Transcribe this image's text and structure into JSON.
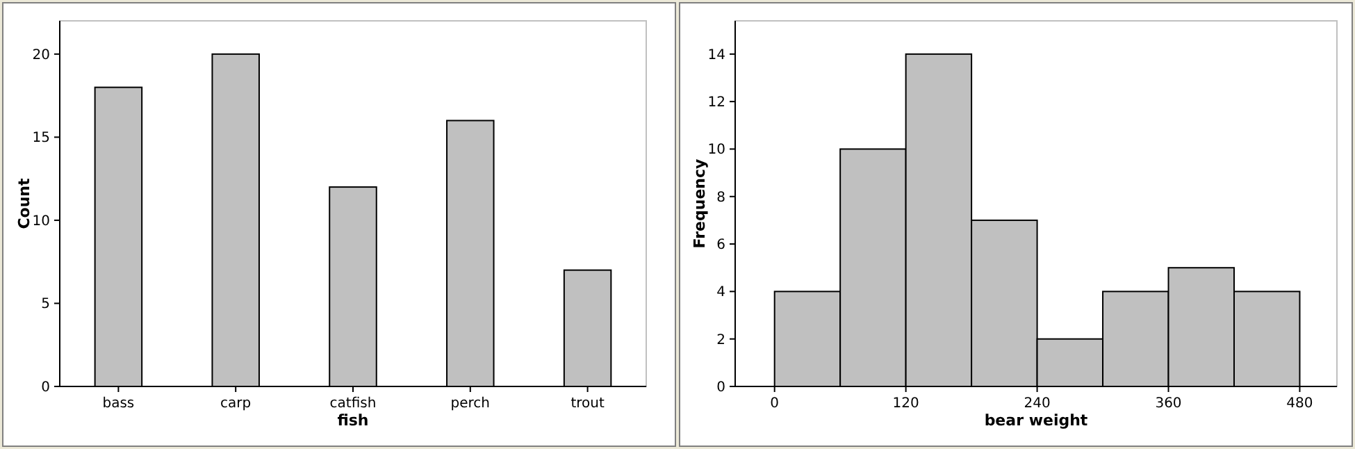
{
  "chart_data": [
    {
      "type": "bar",
      "xlabel": "fish",
      "ylabel": "Count",
      "categories": [
        "bass",
        "carp",
        "catfish",
        "perch",
        "trout"
      ],
      "values": [
        18,
        20,
        12,
        16,
        7
      ],
      "color": "#c0c0c0",
      "ylim": [
        0,
        22
      ],
      "yticks": [
        0,
        5,
        10,
        15,
        20
      ],
      "grid": false
    },
    {
      "type": "histogram",
      "xlabel": "bear weight",
      "ylabel": "Frequency",
      "bins": [
        0,
        60,
        120,
        180,
        240,
        300,
        360,
        420,
        480
      ],
      "values": [
        4,
        10,
        14,
        7,
        2,
        4,
        5,
        4
      ],
      "color": "#c0c0c0",
      "xlim": [
        -36,
        514
      ],
      "xticks": [
        0,
        120,
        240,
        360,
        480
      ],
      "ylim": [
        0,
        15.4
      ],
      "yticks": [
        0,
        2,
        4,
        6,
        8,
        10,
        12,
        14
      ],
      "grid": false
    }
  ]
}
